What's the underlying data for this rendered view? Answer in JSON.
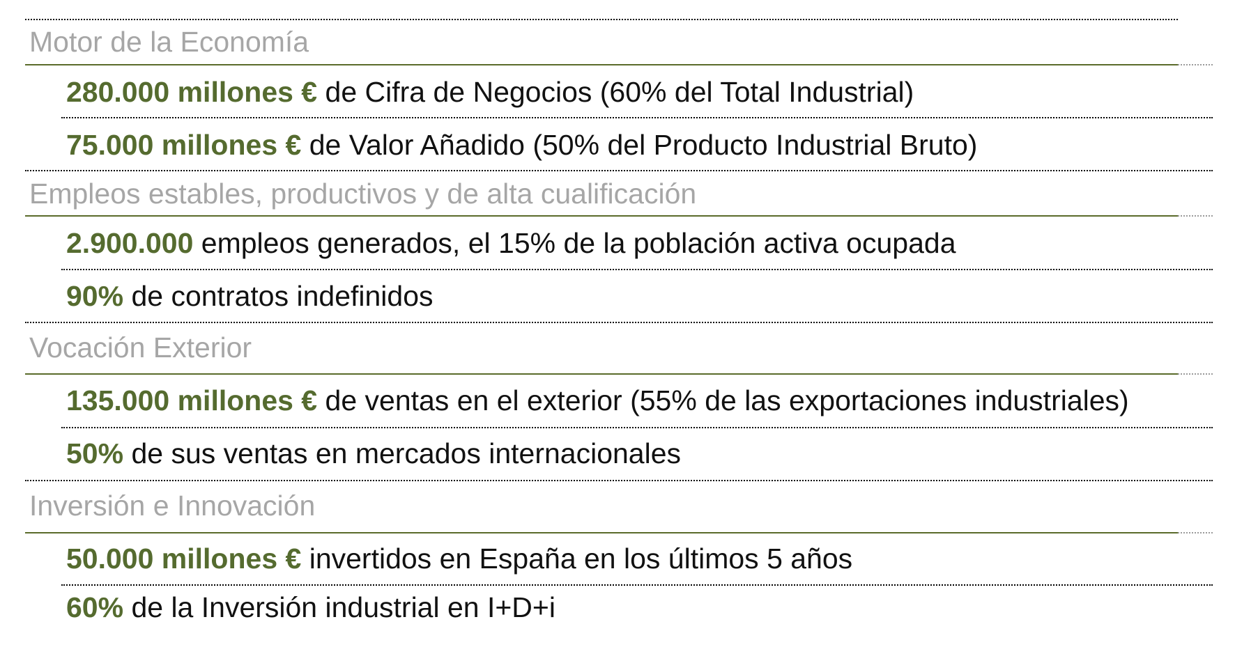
{
  "colors": {
    "heading": "#a6a6a6",
    "highlight": "#556b2f",
    "text": "#111111",
    "rule_green": "#5a6b2a"
  },
  "sections": [
    {
      "heading": "Motor de la Economía",
      "items": [
        {
          "highlight": "280.000 millones €",
          "text": " de Cifra de Negocios (60% del Total Industrial)"
        },
        {
          "highlight": "75.000 millones €",
          "text": " de Valor Añadido (50% del Producto Industrial Bruto)"
        }
      ]
    },
    {
      "heading": "Empleos estables, productivos y de alta cualificación",
      "items": [
        {
          "highlight": "2.900.000",
          "text": " empleos generados, el 15% de la población activa ocupada"
        },
        {
          "highlight": "90%",
          "text": " de contratos indefinidos"
        }
      ]
    },
    {
      "heading": "Vocación Exterior",
      "items": [
        {
          "highlight": "135.000 millones €",
          "text": " de ventas en el exterior (55% de las exportaciones industriales)"
        },
        {
          "highlight": "50%",
          "text": " de sus ventas en mercados internacionales"
        }
      ]
    },
    {
      "heading": "Inversión e Innovación",
      "items": [
        {
          "highlight": "50.000 millones €",
          "text": " invertidos en España en los últimos 5 años"
        },
        {
          "highlight": "60%",
          "text": " de la Inversión industrial en I+D+i"
        }
      ]
    }
  ]
}
